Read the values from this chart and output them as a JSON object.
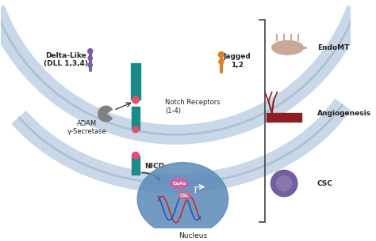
{
  "title": "",
  "background_color": "#ffffff",
  "fig_width": 4.74,
  "fig_height": 3.05,
  "dpi": 100,
  "labels": {
    "delta_like": "Delta-Like\n(DLL 1,3,4)",
    "jagged": "Jagged\n1,2",
    "adam": "ADAM\nγ-Secretase",
    "notch_receptors": "Notch Receptors\n(1-4)",
    "nicd": "NICD",
    "nucleus": "Nucleus",
    "coas": "CoAs",
    "csl": "CSL",
    "endomt": "EndoMT",
    "angiogenesis": "Angiogenesis",
    "csc": "CSC"
  },
  "colors": {
    "membrane": "#c8d8e8",
    "membrane_border": "#b0c0d0",
    "receptor_teal": "#1a8a8a",
    "receptor_purple": "#7b5fa0",
    "receptor_orange": "#e08020",
    "receptor_pink": "#e05070",
    "adam_gray": "#808080",
    "nucleus_blue": "#5b8ab8",
    "nucleus_dna_red": "#c03030",
    "nucleus_dna_blue": "#3050c0",
    "coas_pink": "#d060a0",
    "csl_pink": "#c07090",
    "arrow_color": "#404040",
    "text_color": "#202020",
    "endomt_skin": "#c8a898",
    "angio_red": "#8b2020",
    "angio_vessel": "#8b2020",
    "csc_purple": "#7060a0",
    "csc_inner": "#9080b0",
    "bracket_color": "#404040"
  }
}
